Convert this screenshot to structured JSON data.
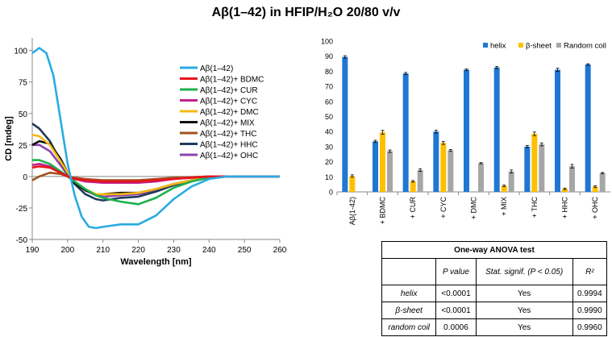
{
  "title": "Aβ(1–42) in HFIP/H₂O 20/80 v/v",
  "chart_data": [
    {
      "type": "line",
      "xlabel": "Wavelength [nm]",
      "ylabel": "CD [mdeg]",
      "xlim": [
        190,
        260
      ],
      "ylim": [
        -50,
        110
      ],
      "xticks": [
        190,
        200,
        210,
        220,
        230,
        240,
        250,
        260
      ],
      "yticks": [
        -50,
        -25,
        0,
        25,
        50,
        75,
        100
      ],
      "legend_position": "top-right",
      "series": [
        {
          "name": "Aβ(1–42)",
          "color": "#29ABE2",
          "points": [
            [
              190,
              98
            ],
            [
              192,
              102
            ],
            [
              194,
              98
            ],
            [
              196,
              80
            ],
            [
              198,
              45
            ],
            [
              200,
              10
            ],
            [
              202,
              -15
            ],
            [
              204,
              -32
            ],
            [
              206,
              -40
            ],
            [
              208,
              -41
            ],
            [
              210,
              -40
            ],
            [
              215,
              -38
            ],
            [
              220,
              -38
            ],
            [
              225,
              -31
            ],
            [
              230,
              -18
            ],
            [
              235,
              -8
            ],
            [
              240,
              -2
            ],
            [
              245,
              0
            ],
            [
              250,
              0
            ],
            [
              260,
              0
            ]
          ]
        },
        {
          "name": "Aβ(1–42)+ BDMC",
          "color": "#E8141C",
          "points": [
            [
              190,
              7
            ],
            [
              192,
              8
            ],
            [
              195,
              7
            ],
            [
              198,
              3
            ],
            [
              200,
              0
            ],
            [
              202,
              -2
            ],
            [
              205,
              -3
            ],
            [
              210,
              -4
            ],
            [
              215,
              -4
            ],
            [
              220,
              -4
            ],
            [
              225,
              -3
            ],
            [
              230,
              -2
            ],
            [
              235,
              -1
            ],
            [
              240,
              0
            ],
            [
              260,
              0
            ]
          ]
        },
        {
          "name": "Aβ(1–42)+ CUR",
          "color": "#1BB14C",
          "points": [
            [
              190,
              13
            ],
            [
              192,
              13
            ],
            [
              195,
              10
            ],
            [
              198,
              4
            ],
            [
              200,
              0
            ],
            [
              202,
              -4
            ],
            [
              205,
              -10
            ],
            [
              208,
              -15
            ],
            [
              210,
              -17
            ],
            [
              215,
              -20
            ],
            [
              220,
              -22
            ],
            [
              225,
              -17
            ],
            [
              230,
              -9
            ],
            [
              235,
              -4
            ],
            [
              240,
              -1
            ],
            [
              245,
              0
            ],
            [
              260,
              0
            ]
          ]
        },
        {
          "name": "Aβ(1–42)+ CYC",
          "color": "#C2228F",
          "points": [
            [
              190,
              9
            ],
            [
              192,
              10
            ],
            [
              195,
              8
            ],
            [
              198,
              3
            ],
            [
              200,
              0
            ],
            [
              202,
              -2
            ],
            [
              205,
              -4
            ],
            [
              210,
              -5
            ],
            [
              215,
              -5
            ],
            [
              220,
              -5
            ],
            [
              225,
              -4
            ],
            [
              230,
              -2
            ],
            [
              235,
              -1
            ],
            [
              240,
              0
            ],
            [
              260,
              0
            ]
          ]
        },
        {
          "name": "Aβ(1–42)+ DMC",
          "color": "#F5B914",
          "points": [
            [
              190,
              33
            ],
            [
              192,
              32
            ],
            [
              195,
              25
            ],
            [
              198,
              12
            ],
            [
              200,
              3
            ],
            [
              202,
              -4
            ],
            [
              205,
              -10
            ],
            [
              208,
              -14
            ],
            [
              210,
              -14
            ],
            [
              215,
              -14
            ],
            [
              220,
              -13
            ],
            [
              225,
              -10
            ],
            [
              230,
              -6
            ],
            [
              235,
              -3
            ],
            [
              240,
              -1
            ],
            [
              245,
              0
            ],
            [
              260,
              0
            ]
          ]
        },
        {
          "name": "Aβ(1–42)+ MIX",
          "color": "#111111",
          "points": [
            [
              190,
              25
            ],
            [
              192,
              28
            ],
            [
              195,
              26
            ],
            [
              198,
              14
            ],
            [
              200,
              3
            ],
            [
              202,
              -5
            ],
            [
              205,
              -11
            ],
            [
              208,
              -14
            ],
            [
              210,
              -14
            ],
            [
              215,
              -13
            ],
            [
              220,
              -13
            ],
            [
              225,
              -10
            ],
            [
              230,
              -6
            ],
            [
              235,
              -3
            ],
            [
              240,
              -1
            ],
            [
              245,
              0
            ],
            [
              260,
              0
            ]
          ]
        },
        {
          "name": "Aβ(1–42)+ THC",
          "color": "#A0521E",
          "points": [
            [
              190,
              -3
            ],
            [
              192,
              0
            ],
            [
              195,
              3
            ],
            [
              198,
              2
            ],
            [
              200,
              0
            ],
            [
              202,
              -1
            ],
            [
              205,
              -2
            ],
            [
              210,
              -3
            ],
            [
              215,
              -3
            ],
            [
              220,
              -3
            ],
            [
              225,
              -2
            ],
            [
              230,
              -1
            ],
            [
              240,
              0
            ],
            [
              260,
              0
            ]
          ]
        },
        {
          "name": "Aβ(1–42)+ HHC",
          "color": "#1F3B5C",
          "points": [
            [
              190,
              42
            ],
            [
              192,
              38
            ],
            [
              195,
              28
            ],
            [
              198,
              12
            ],
            [
              200,
              2
            ],
            [
              202,
              -6
            ],
            [
              205,
              -14
            ],
            [
              208,
              -18
            ],
            [
              210,
              -19
            ],
            [
              215,
              -17
            ],
            [
              220,
              -16
            ],
            [
              225,
              -12
            ],
            [
              230,
              -7
            ],
            [
              235,
              -3
            ],
            [
              240,
              -1
            ],
            [
              245,
              0
            ],
            [
              260,
              0
            ]
          ]
        },
        {
          "name": "Aβ(1–42)+ OHC",
          "color": "#8E44AD",
          "points": [
            [
              190,
              25
            ],
            [
              192,
              25
            ],
            [
              195,
              20
            ],
            [
              198,
              9
            ],
            [
              200,
              1
            ],
            [
              202,
              -5
            ],
            [
              205,
              -11
            ],
            [
              208,
              -15
            ],
            [
              210,
              -16
            ],
            [
              215,
              -15
            ],
            [
              220,
              -14
            ],
            [
              225,
              -11
            ],
            [
              230,
              -6
            ],
            [
              235,
              -3
            ],
            [
              240,
              -1
            ],
            [
              245,
              0
            ],
            [
              260,
              0
            ]
          ]
        }
      ]
    },
    {
      "type": "bar",
      "categories": [
        "Aβ(1-42)",
        "+ BDMC",
        "+ CUR",
        "+ CYC",
        "+ DMC",
        "+ MIX",
        "+ THC",
        "+ HHC",
        "+ OHC"
      ],
      "ylim": [
        0,
        100
      ],
      "yticks": [
        0,
        10,
        20,
        30,
        40,
        50,
        60,
        70,
        80,
        90,
        100
      ],
      "legend_position": "top",
      "series": [
        {
          "name": "helix",
          "color": "#1F77D4",
          "values": [
            89.5,
            33.5,
            78.5,
            40,
            81,
            82.5,
            30,
            81,
            84.5
          ],
          "errors": [
            0.8,
            0.7,
            0.7,
            1,
            0.5,
            0.7,
            0.7,
            1,
            0.5
          ]
        },
        {
          "name": "β-sheet",
          "color": "#FFC000",
          "values": [
            10.5,
            39.5,
            7,
            32.5,
            0,
            4,
            38.5,
            2,
            3.5
          ],
          "errors": [
            0.8,
            1.3,
            0.5,
            1,
            0,
            0.5,
            1.2,
            0.5,
            0.5
          ]
        },
        {
          "name": "Random coil",
          "color": "#A6A6A6",
          "values": [
            0,
            27,
            14.5,
            27.5,
            19,
            13.5,
            31.5,
            17,
            12.5
          ],
          "errors": [
            0,
            0.8,
            0.9,
            0.6,
            0.4,
            1,
            1,
            1.2,
            0.4
          ]
        }
      ]
    }
  ],
  "anova": {
    "title": "One-way ANOVA test",
    "headers": [
      "",
      "P value",
      "Stat. signif. (P < 0.05)",
      "R²"
    ],
    "rows": [
      {
        "label": "helix",
        "p": "<0.0001",
        "sig": "Yes",
        "r2": "0.9994"
      },
      {
        "label": "β-sheet",
        "p": "<0.0001",
        "sig": "Yes",
        "r2": "0.9990"
      },
      {
        "label": "random coil",
        "p": "0.0006",
        "sig": "Yes",
        "r2": "0.9960"
      }
    ]
  }
}
